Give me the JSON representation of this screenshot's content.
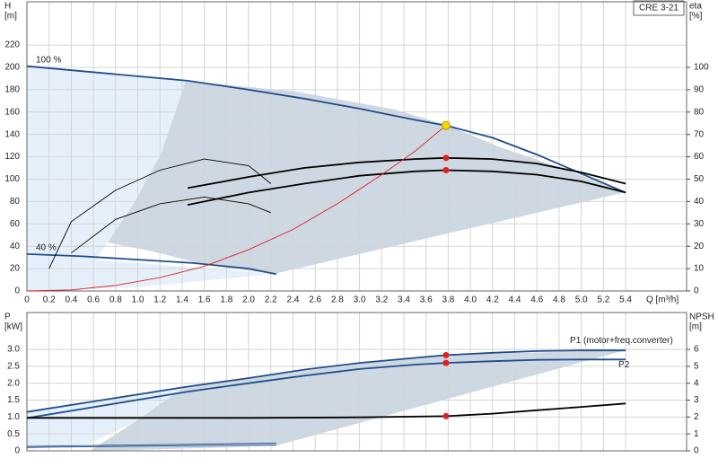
{
  "chart_data": [
    {
      "type": "line",
      "title": "CRE 3-21",
      "ylabel": "H",
      "ylabel_unit": "[m]",
      "y2label": "eta",
      "y2label_unit": "[%]",
      "xlabel": "Q [m³/h]",
      "xlim": [
        0,
        5.95
      ],
      "xticks": [
        {
          "value": 0,
          "label": "0"
        },
        0.2,
        0.4,
        0.6,
        0.8,
        {
          "value": 1,
          "label": "1.0"
        },
        1.2,
        1.4,
        1.6,
        1.8,
        {
          "value": 2,
          "label": "2.0"
        },
        2.2,
        2.4,
        2.6,
        2.8,
        {
          "value": 3,
          "label": "3.0"
        },
        3.2,
        3.4,
        3.6,
        3.8,
        {
          "value": 4,
          "label": "4.0"
        },
        4.2,
        4.4,
        4.6,
        4.8,
        {
          "value": 5,
          "label": "5.0"
        },
        5.2,
        5.4
      ],
      "ylim": [
        0,
        258.6
      ],
      "yticks": [
        0,
        20,
        40,
        60,
        80,
        100,
        120,
        140,
        160,
        180,
        200,
        220
      ],
      "y2lim": [
        0,
        129.3
      ],
      "y2ticks": [
        0,
        10,
        20,
        30,
        40,
        50,
        60,
        70,
        80,
        90,
        100
      ],
      "grid": true,
      "series": [
        {
          "name": "100 %",
          "color": "#1f4e8c",
          "x": [
            0,
            1.45,
            2,
            2.5,
            3,
            3.5,
            3.78,
            4.2,
            4.6,
            5,
            5.4
          ],
          "values": [
            201,
            188,
            180,
            172,
            163,
            153,
            148,
            137,
            122,
            105,
            88
          ]
        },
        {
          "name": "40 %",
          "color": "#1f4e8c",
          "x": [
            0,
            0.5,
            1,
            1.5,
            2,
            2.25
          ],
          "values": [
            33,
            31,
            28,
            25,
            20,
            15
          ]
        },
        {
          "color": "#000000",
          "axis": "y2",
          "x": [
            1.45,
            2,
            2.5,
            3,
            3.5,
            3.78,
            4.2,
            4.6,
            5,
            5.4
          ],
          "values": [
            38.5,
            44,
            48,
            51.5,
            53.5,
            54,
            53.5,
            52,
            49,
            44
          ]
        },
        {
          "color": "#000000",
          "axis": "y2",
          "x": [
            1.45,
            2,
            2.5,
            3,
            3.5,
            3.78,
            4.2,
            4.6,
            5,
            5.4
          ],
          "values": [
            46,
            51,
            55,
            57.5,
            59,
            59.5,
            59,
            57,
            53,
            48
          ]
        },
        {
          "color": "#000000",
          "axis": "y2",
          "x": [
            0.2,
            0.4,
            0.8,
            1.2,
            1.6,
            2,
            2.2
          ],
          "values": [
            10,
            31,
            45,
            54,
            59,
            56,
            48
          ]
        },
        {
          "color": "#000000",
          "axis": "y2",
          "x": [
            0.4,
            0.8,
            1.2,
            1.6,
            2,
            2.2
          ],
          "values": [
            17,
            32,
            39,
            42,
            39,
            35
          ]
        },
        {
          "color": "#e02020",
          "x": [
            0,
            0.4,
            0.8,
            1.2,
            1.6,
            2,
            2.4,
            2.8,
            3.2,
            3.5,
            3.78
          ],
          "values": [
            0,
            1,
            5,
            12,
            22,
            37,
            55,
            78,
            104,
            125,
            148
          ]
        }
      ],
      "points": [
        {
          "color": "#f5d800",
          "x": 3.78,
          "value": 148
        },
        {
          "color": "#e02020",
          "x": 3.78,
          "value": 119
        },
        {
          "color": "#e02020",
          "x": 3.78,
          "value": 108
        }
      ]
    },
    {
      "type": "line",
      "ylabel": "P",
      "ylabel_unit": "[kW]",
      "y2label": "NPSH",
      "y2label_unit": "[m]",
      "xlim": [
        0,
        5.95
      ],
      "xticks": [
        0,
        0.2,
        0.4,
        0.6,
        0.8,
        1,
        1.2,
        1.4,
        1.6,
        1.8,
        2,
        2.2,
        2.4,
        2.6,
        2.8,
        3,
        3.2,
        3.4,
        3.6,
        3.8,
        4,
        4.2,
        4.4,
        4.6,
        4.8,
        5,
        5.2,
        5.4
      ],
      "ylim": [
        0,
        4.09
      ],
      "yticks": [
        0,
        0.5,
        {
          "value": 1,
          "label": "1.0"
        },
        1.5,
        {
          "value": 2,
          "label": "2.0"
        },
        2.5,
        {
          "value": 3,
          "label": "3.0"
        }
      ],
      "y2lim": [
        0,
        8.18
      ],
      "y2ticks": [
        0,
        1,
        2,
        3,
        4,
        5,
        6
      ],
      "grid": true,
      "series": [
        {
          "name": "P1 (motor+freq.converter)",
          "color": "#1f4e8c",
          "x": [
            0,
            1.45,
            2,
            2.5,
            3,
            3.5,
            3.78,
            4.2,
            4.6,
            5,
            5.4
          ],
          "values": [
            1.15,
            1.9,
            2.15,
            2.4,
            2.6,
            2.75,
            2.83,
            2.9,
            2.95,
            2.97,
            2.97
          ]
        },
        {
          "name": "P2",
          "color": "#1f4e8c",
          "x": [
            0,
            1.45,
            2,
            2.5,
            3,
            3.5,
            3.78,
            4.2,
            4.6,
            5,
            5.4
          ],
          "values": [
            0.97,
            1.75,
            2.0,
            2.22,
            2.42,
            2.55,
            2.6,
            2.65,
            2.69,
            2.7,
            2.7
          ]
        },
        {
          "color": "#000000",
          "axis": "y2",
          "x": [
            0,
            1.45,
            2,
            3,
            3.78,
            4.2,
            4.6,
            5,
            5.4
          ],
          "values": [
            1.95,
            1.95,
            1.95,
            1.98,
            2.05,
            2.2,
            2.4,
            2.6,
            2.8
          ]
        },
        {
          "color": "#1f4e8c",
          "x": [
            0,
            2.25
          ],
          "values": [
            0.13,
            0.23
          ]
        },
        {
          "color": "#1f4e8c",
          "x": [
            0,
            2.25
          ],
          "values": [
            0.1,
            0.18
          ]
        }
      ],
      "points": [
        {
          "color": "#e02020",
          "x": 3.78,
          "value": 2.83
        },
        {
          "color": "#e02020",
          "x": 3.78,
          "value": 2.6
        },
        {
          "color": "#e02020",
          "axis": "y2",
          "x": 3.78,
          "value": 2.05
        }
      ]
    }
  ]
}
